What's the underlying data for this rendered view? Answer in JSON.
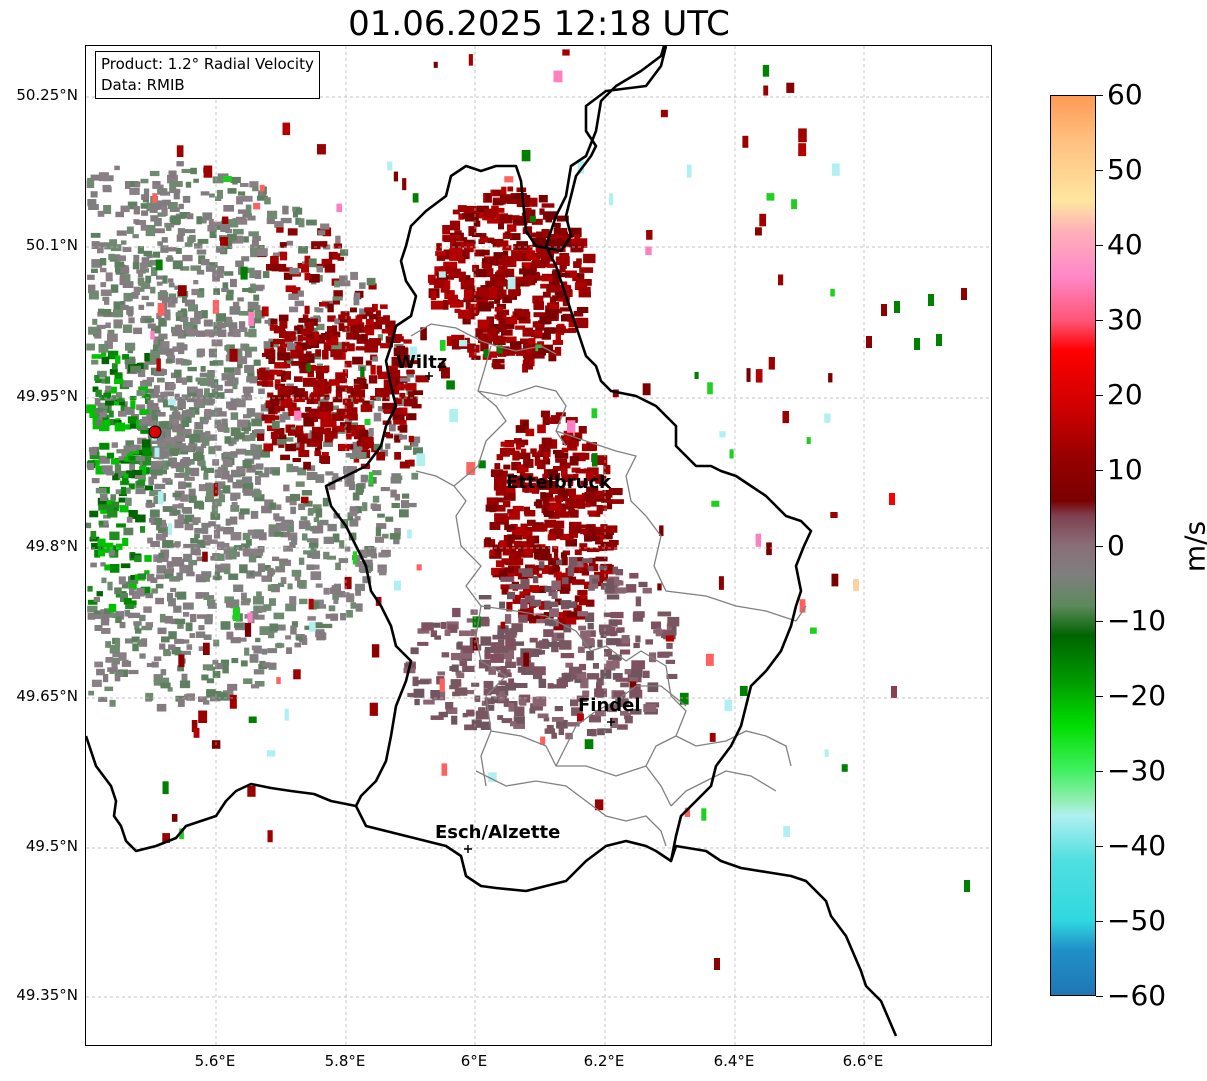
{
  "title": "01.06.2025 12:18 UTC",
  "info": {
    "product": "Product: 1.2° Radial Velocity",
    "data": "Data: RMIB"
  },
  "axes": {
    "lat_ticks": [
      "50.25°N",
      "50.1°N",
      "49.95°N",
      "49.8°N",
      "49.65°N",
      "49.5°N",
      "49.35°N"
    ],
    "lon_ticks": [
      "5.6°E",
      "5.8°E",
      "6°E",
      "6.2°E",
      "6.4°E",
      "6.6°E"
    ]
  },
  "cities": [
    {
      "name": "Wiltz"
    },
    {
      "name": "Ettelbruck"
    },
    {
      "name": "Findel"
    },
    {
      "name": "Esch/Alzette"
    }
  ],
  "colorbar": {
    "label": "m/s",
    "ticks": [
      "60",
      "50",
      "40",
      "30",
      "20",
      "10",
      "0",
      "−10",
      "−20",
      "−30",
      "−40",
      "−50",
      "−60"
    ]
  },
  "colors": {
    "grid": "#b0b0b0",
    "border": "#000000",
    "canton": "#808080",
    "radar_site": "#dd0000"
  }
}
